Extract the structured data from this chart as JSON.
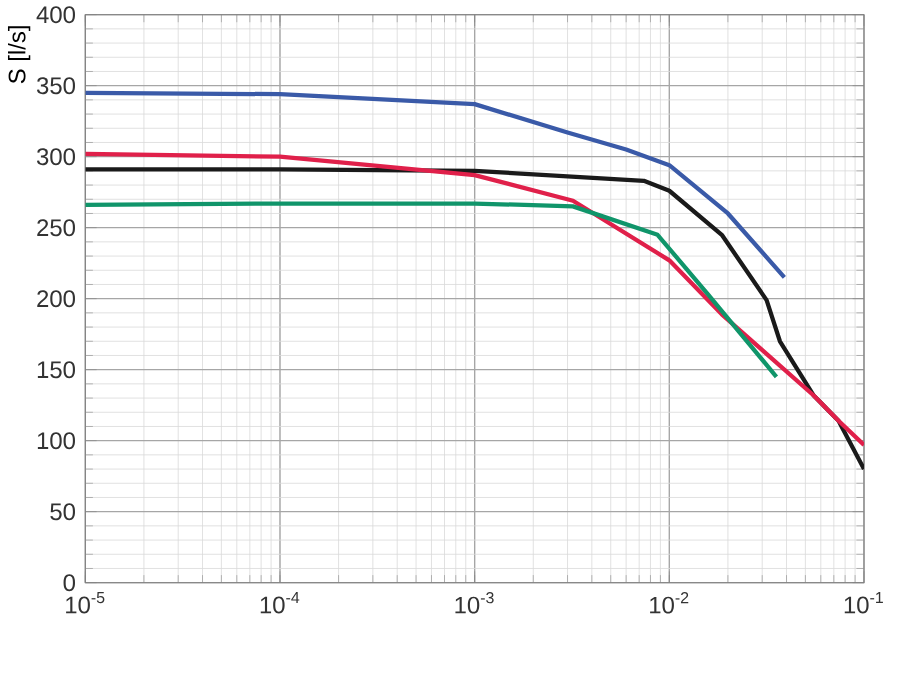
{
  "chart_data": {
    "type": "line",
    "ylabel": "S [l/s]",
    "log": "x",
    "grid": true,
    "marker": "none",
    "line_style": "solid",
    "xlim": [
      1e-05,
      0.1
    ],
    "ylim": [
      0,
      400
    ],
    "xticks": [
      {
        "value": 1e-05,
        "label": "10$^{-5}$"
      },
      {
        "value": 0.0001,
        "label": "10$^{-4}$"
      },
      {
        "value": 0.001,
        "label": "10$^{-3}$"
      },
      {
        "value": 0.01,
        "label": "10$^{-2}$"
      },
      {
        "value": 0.1,
        "label": "10$^{-1}$"
      }
    ],
    "yticks": [
      0,
      50,
      100,
      150,
      200,
      250,
      300,
      350,
      400
    ],
    "series": [
      {
        "color": "#3a5aa8",
        "x": [
          1e-05,
          0.0001,
          0.001,
          0.003,
          0.006,
          0.01,
          0.02,
          0.039
        ],
        "values": [
          345,
          344,
          337,
          317,
          305,
          294,
          260,
          215
        ]
      },
      {
        "color": "#1a1a1a",
        "x": [
          1e-05,
          0.0001,
          0.001,
          0.0074,
          0.01,
          0.0186,
          0.0316,
          0.037,
          0.055,
          0.074,
          0.1
        ],
        "values": [
          291,
          291,
          290,
          283,
          276,
          245,
          199,
          170,
          132,
          114,
          80
        ]
      },
      {
        "color": "#e0204a",
        "x": [
          1e-05,
          0.0001,
          0.001,
          0.0032,
          0.01,
          0.0186,
          0.055,
          0.074,
          0.1
        ],
        "values": [
          302,
          300,
          287,
          269,
          227,
          189,
          132,
          114,
          97
        ]
      },
      {
        "color": "#10956a",
        "x": [
          1e-05,
          0.0001,
          0.001,
          0.0032,
          0.0087,
          0.0158,
          0.0355
        ],
        "values": [
          266,
          267,
          267,
          265,
          245,
          203,
          145
        ]
      }
    ]
  }
}
